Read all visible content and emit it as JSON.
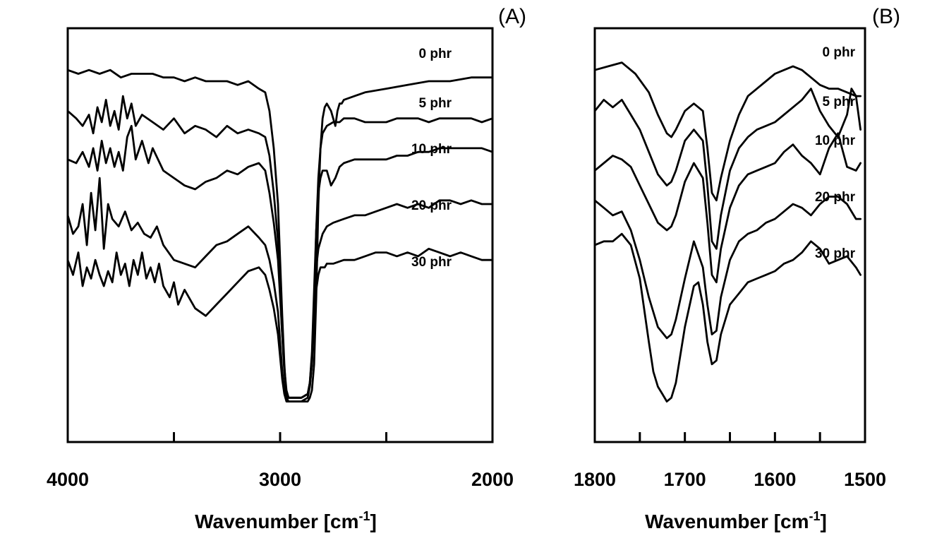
{
  "chart_data": [
    {
      "type": "line",
      "panel_label": "(A)",
      "xlabel": "Wavenumber [cm-1]",
      "xlabel_main": "Wavenumber [cm",
      "xlabel_sup": "-1",
      "xlabel_end": "]",
      "ylabel": "",
      "xlim": [
        4000,
        2000
      ],
      "x_reversed": true,
      "ylim": [
        0,
        100
      ],
      "y_ticks_shown": false,
      "grid": false,
      "legend": "inline labels",
      "tick_labels": [
        "4000",
        "3000",
        "2000"
      ],
      "tick_values": [
        4000,
        3000,
        2000
      ],
      "minor_ticks": [
        3500,
        2500
      ],
      "series": [
        {
          "name": "0 phr",
          "x": [
            4000,
            3950,
            3900,
            3850,
            3800,
            3750,
            3700,
            3650,
            3600,
            3550,
            3500,
            3450,
            3400,
            3350,
            3300,
            3250,
            3200,
            3150,
            3100,
            3070,
            3050,
            3030,
            3010,
            3000,
            2990,
            2980,
            2970,
            2960,
            2950,
            2940,
            2900,
            2870,
            2860,
            2850,
            2840,
            2830,
            2820,
            2810,
            2800,
            2790,
            2780,
            2760,
            2740,
            2730,
            2720,
            2710,
            2700,
            2650,
            2600,
            2500,
            2400,
            2300,
            2200,
            2100,
            2000
          ],
          "y": [
            91,
            90,
            91,
            90,
            91,
            89,
            90,
            90,
            90,
            89,
            89,
            88,
            89,
            88,
            88,
            88,
            87,
            88,
            86,
            85,
            80,
            70,
            55,
            40,
            25,
            12,
            3,
            2,
            2,
            2,
            2,
            2,
            3,
            5,
            12,
            30,
            55,
            70,
            78,
            81,
            82,
            80,
            76,
            80,
            82,
            82,
            83,
            84,
            85,
            86,
            87,
            88,
            88,
            89,
            89
          ]
        },
        {
          "name": "5 phr",
          "x": [
            4000,
            3960,
            3930,
            3900,
            3880,
            3860,
            3840,
            3820,
            3800,
            3780,
            3760,
            3740,
            3720,
            3700,
            3680,
            3650,
            3600,
            3550,
            3500,
            3450,
            3400,
            3350,
            3300,
            3250,
            3200,
            3150,
            3100,
            3070,
            3050,
            3030,
            3010,
            3000,
            2990,
            2980,
            2970,
            2960,
            2950,
            2940,
            2900,
            2870,
            2860,
            2850,
            2840,
            2830,
            2820,
            2810,
            2800,
            2790,
            2780,
            2750,
            2720,
            2700,
            2650,
            2600,
            2550,
            2500,
            2450,
            2400,
            2350,
            2300,
            2250,
            2200,
            2150,
            2100,
            2050,
            2000
          ],
          "y": [
            80,
            78,
            76,
            79,
            74,
            81,
            77,
            83,
            76,
            80,
            75,
            84,
            78,
            82,
            76,
            79,
            77,
            75,
            78,
            74,
            76,
            75,
            73,
            76,
            74,
            75,
            74,
            73,
            68,
            58,
            45,
            32,
            20,
            10,
            4,
            3,
            3,
            3,
            3,
            4,
            6,
            12,
            28,
            48,
            62,
            70,
            74,
            75,
            76,
            77,
            77,
            78,
            78,
            77,
            77,
            77,
            78,
            78,
            78,
            77,
            78,
            78,
            78,
            78,
            77,
            78
          ]
        },
        {
          "name": "10 phr",
          "x": [
            4000,
            3960,
            3930,
            3900,
            3880,
            3860,
            3840,
            3820,
            3800,
            3780,
            3760,
            3740,
            3720,
            3700,
            3680,
            3650,
            3620,
            3600,
            3550,
            3500,
            3450,
            3400,
            3350,
            3300,
            3250,
            3200,
            3150,
            3100,
            3070,
            3050,
            3030,
            3010,
            3000,
            2990,
            2980,
            2970,
            2960,
            2950,
            2940,
            2900,
            2870,
            2860,
            2850,
            2840,
            2830,
            2820,
            2810,
            2800,
            2790,
            2780,
            2760,
            2740,
            2720,
            2700,
            2650,
            2600,
            2550,
            2500,
            2450,
            2400,
            2350,
            2300,
            2250,
            2200,
            2150,
            2100,
            2050,
            2000
          ],
          "y": [
            67,
            66,
            69,
            65,
            70,
            64,
            72,
            66,
            70,
            65,
            69,
            64,
            73,
            76,
            67,
            72,
            66,
            70,
            64,
            62,
            60,
            59,
            61,
            62,
            64,
            63,
            65,
            66,
            64,
            58,
            50,
            40,
            30,
            20,
            11,
            5,
            3,
            3,
            3,
            3,
            4,
            7,
            15,
            32,
            48,
            58,
            62,
            64,
            64,
            64,
            60,
            62,
            65,
            66,
            67,
            67,
            67,
            67,
            68,
            68,
            69,
            69,
            70,
            70,
            70,
            70,
            70,
            69
          ]
        },
        {
          "name": "20 phr",
          "x": [
            4000,
            3975,
            3950,
            3930,
            3910,
            3890,
            3870,
            3850,
            3830,
            3810,
            3790,
            3760,
            3730,
            3700,
            3670,
            3640,
            3610,
            3580,
            3550,
            3500,
            3450,
            3400,
            3350,
            3300,
            3250,
            3200,
            3150,
            3100,
            3070,
            3050,
            3030,
            3010,
            3000,
            2990,
            2980,
            2970,
            2960,
            2950,
            2940,
            2900,
            2870,
            2860,
            2850,
            2840,
            2830,
            2820,
            2810,
            2800,
            2790,
            2780,
            2750,
            2700,
            2650,
            2600,
            2550,
            2500,
            2450,
            2400,
            2350,
            2300,
            2250,
            2200,
            2150,
            2100,
            2050,
            2000
          ],
          "y": [
            52,
            47,
            49,
            55,
            44,
            58,
            48,
            62,
            43,
            55,
            51,
            49,
            53,
            48,
            50,
            47,
            46,
            49,
            44,
            40,
            39,
            38,
            41,
            44,
            45,
            47,
            49,
            46,
            44,
            40,
            34,
            26,
            18,
            10,
            5,
            3,
            3,
            3,
            3,
            3,
            4,
            7,
            14,
            28,
            38,
            43,
            45,
            47,
            48,
            49,
            50,
            51,
            52,
            52,
            53,
            54,
            55,
            54,
            55,
            54,
            56,
            56,
            55,
            56,
            55,
            55
          ]
        },
        {
          "name": "30 phr",
          "x": [
            4000,
            3975,
            3950,
            3930,
            3910,
            3890,
            3870,
            3850,
            3830,
            3810,
            3790,
            3770,
            3750,
            3730,
            3710,
            3690,
            3670,
            3650,
            3630,
            3610,
            3590,
            3570,
            3550,
            3520,
            3500,
            3480,
            3450,
            3400,
            3350,
            3300,
            3250,
            3200,
            3150,
            3100,
            3070,
            3050,
            3030,
            3010,
            3000,
            2990,
            2980,
            2970,
            2960,
            2950,
            2940,
            2900,
            2870,
            2860,
            2850,
            2840,
            2830,
            2820,
            2810,
            2800,
            2790,
            2780,
            2750,
            2700,
            2650,
            2600,
            2550,
            2500,
            2450,
            2400,
            2350,
            2300,
            2250,
            2200,
            2150,
            2100,
            2050,
            2000
          ],
          "y": [
            40,
            36,
            42,
            33,
            38,
            35,
            40,
            36,
            33,
            37,
            34,
            42,
            36,
            39,
            33,
            40,
            36,
            42,
            35,
            38,
            34,
            39,
            33,
            30,
            34,
            28,
            32,
            27,
            25,
            28,
            31,
            34,
            37,
            38,
            36,
            32,
            27,
            20,
            14,
            8,
            4,
            2,
            2,
            2,
            2,
            2,
            3,
            6,
            12,
            24,
            32,
            36,
            38,
            38,
            38,
            39,
            39,
            40,
            40,
            41,
            42,
            42,
            41,
            42,
            41,
            43,
            42,
            41,
            42,
            41,
            40,
            40
          ]
        }
      ],
      "annotations": [
        "0 phr",
        "5 phr",
        "10 phr",
        "20 phr",
        "30 phr"
      ]
    },
    {
      "type": "line",
      "panel_label": "(B)",
      "xlabel": "Wavenumber [cm-1]",
      "xlabel_main": "Wavenumber [cm",
      "xlabel_sup": "-1",
      "xlabel_end": "]",
      "ylabel": "",
      "xlim": [
        1800,
        1500
      ],
      "x_reversed": true,
      "ylim": [
        0,
        100
      ],
      "y_ticks_shown": false,
      "grid": false,
      "legend": "inline labels",
      "tick_labels": [
        "1800",
        "1700",
        "1600",
        "1500"
      ],
      "tick_values": [
        1800,
        1700,
        1600,
        1500
      ],
      "minor_ticks": [
        1750,
        1650,
        1550
      ],
      "series": [
        {
          "name": "0 phr",
          "x": [
            1800,
            1785,
            1770,
            1755,
            1740,
            1730,
            1720,
            1715,
            1710,
            1700,
            1690,
            1680,
            1675,
            1670,
            1665,
            1660,
            1650,
            1640,
            1630,
            1620,
            1610,
            1600,
            1590,
            1580,
            1570,
            1560,
            1550,
            1540,
            1530,
            1520,
            1510,
            1505
          ],
          "y": [
            91,
            92,
            93,
            90,
            85,
            79,
            74,
            73,
            75,
            80,
            82,
            80,
            70,
            58,
            56,
            62,
            72,
            79,
            84,
            86,
            88,
            90,
            91,
            92,
            91,
            89,
            87,
            86,
            86,
            85,
            84,
            84
          ]
        },
        {
          "name": "5 phr",
          "x": [
            1800,
            1790,
            1780,
            1770,
            1760,
            1750,
            1740,
            1730,
            1720,
            1715,
            1710,
            1700,
            1690,
            1680,
            1675,
            1670,
            1665,
            1660,
            1650,
            1640,
            1630,
            1620,
            1610,
            1600,
            1590,
            1580,
            1570,
            1560,
            1550,
            1540,
            1530,
            1520,
            1515,
            1510,
            1505
          ],
          "y": [
            80,
            83,
            81,
            83,
            79,
            75,
            69,
            63,
            60,
            61,
            64,
            72,
            75,
            72,
            60,
            45,
            43,
            52,
            64,
            70,
            73,
            75,
            76,
            77,
            79,
            81,
            83,
            86,
            80,
            76,
            73,
            79,
            86,
            84,
            75
          ]
        },
        {
          "name": "10 phr",
          "x": [
            1800,
            1790,
            1780,
            1770,
            1760,
            1750,
            1740,
            1730,
            1720,
            1715,
            1710,
            1700,
            1690,
            1680,
            1675,
            1670,
            1665,
            1660,
            1650,
            1640,
            1630,
            1620,
            1610,
            1600,
            1590,
            1580,
            1570,
            1560,
            1550,
            1540,
            1530,
            1520,
            1510,
            1505
          ],
          "y": [
            64,
            66,
            68,
            67,
            65,
            60,
            55,
            50,
            48,
            49,
            52,
            61,
            66,
            62,
            50,
            36,
            34,
            43,
            54,
            60,
            63,
            64,
            65,
            66,
            69,
            71,
            68,
            66,
            63,
            70,
            74,
            65,
            64,
            66
          ]
        },
        {
          "name": "20 phr",
          "x": [
            1800,
            1790,
            1780,
            1770,
            1760,
            1750,
            1740,
            1730,
            1720,
            1715,
            1710,
            1700,
            1690,
            1680,
            1675,
            1670,
            1665,
            1660,
            1650,
            1640,
            1630,
            1620,
            1610,
            1600,
            1590,
            1580,
            1570,
            1560,
            1550,
            1540,
            1530,
            1520,
            1510,
            1505
          ],
          "y": [
            56,
            54,
            52,
            53,
            48,
            40,
            30,
            22,
            19,
            20,
            24,
            35,
            45,
            38,
            28,
            20,
            21,
            30,
            40,
            45,
            47,
            48,
            50,
            51,
            53,
            55,
            54,
            52,
            55,
            57,
            57,
            55,
            51,
            51
          ]
        },
        {
          "name": "30 phr",
          "x": [
            1800,
            1790,
            1780,
            1770,
            1760,
            1750,
            1740,
            1735,
            1730,
            1725,
            1720,
            1715,
            1710,
            1700,
            1690,
            1685,
            1680,
            1675,
            1670,
            1665,
            1660,
            1650,
            1640,
            1630,
            1620,
            1610,
            1600,
            1590,
            1580,
            1570,
            1560,
            1550,
            1540,
            1530,
            1520,
            1510,
            1505
          ],
          "y": [
            44,
            45,
            45,
            47,
            44,
            35,
            18,
            10,
            6,
            4,
            2,
            3,
            7,
            22,
            33,
            34,
            28,
            18,
            12,
            13,
            20,
            28,
            31,
            34,
            35,
            36,
            37,
            39,
            40,
            42,
            45,
            43,
            39,
            40,
            41,
            38,
            36
          ]
        }
      ],
      "annotations": [
        "0 phr",
        "5 phr",
        "10 phr",
        "20 phr",
        "30 phr"
      ]
    }
  ]
}
